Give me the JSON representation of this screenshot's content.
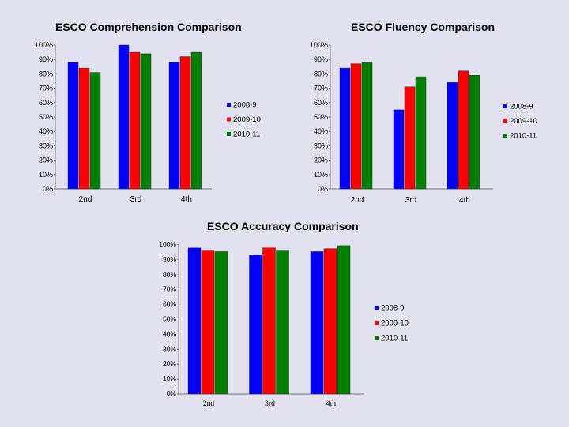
{
  "chart_data": [
    {
      "type": "bar",
      "title": "ESCO Comprehension Comparison",
      "categories": [
        "2nd",
        "3rd",
        "4th"
      ],
      "series": [
        {
          "name": "2008-9",
          "color": "#0000ff",
          "values": [
            88,
            100,
            88
          ]
        },
        {
          "name": "2009-10",
          "color": "#ff0000",
          "values": [
            84,
            95,
            92
          ]
        },
        {
          "name": "2010-11",
          "color": "#008000",
          "values": [
            81,
            94,
            95
          ]
        }
      ],
      "ylim": [
        0,
        100
      ],
      "yticks": [
        "0%",
        "10%",
        "20%",
        "30%",
        "40%",
        "50%",
        "60%",
        "70%",
        "80%",
        "90%",
        "100%"
      ],
      "xlabel": "",
      "ylabel": "",
      "legend": "right"
    },
    {
      "type": "bar",
      "title": "ESCO Fluency Comparison",
      "categories": [
        "2nd",
        "3rd",
        "4th"
      ],
      "series": [
        {
          "name": "2008-9",
          "color": "#0000ff",
          "values": [
            84,
            55,
            74
          ]
        },
        {
          "name": "2009-10",
          "color": "#ff0000",
          "values": [
            87,
            71,
            82
          ]
        },
        {
          "name": "2010-11",
          "color": "#008000",
          "values": [
            88,
            78,
            79
          ]
        }
      ],
      "ylim": [
        0,
        100
      ],
      "yticks": [
        "0%",
        "10%",
        "20%",
        "30%",
        "40%",
        "50%",
        "60%",
        "70%",
        "80%",
        "90%",
        "100%"
      ],
      "xlabel": "",
      "ylabel": "",
      "legend": "right"
    },
    {
      "type": "bar",
      "title": "ESCO Accuracy Comparison",
      "categories": [
        "2nd",
        "3rd",
        "4th"
      ],
      "series": [
        {
          "name": "2008-9",
          "color": "#0000ff",
          "values": [
            98,
            93,
            95
          ]
        },
        {
          "name": "2009-10",
          "color": "#ff0000",
          "values": [
            96,
            98,
            97
          ]
        },
        {
          "name": "2010-11",
          "color": "#008000",
          "values": [
            95,
            96,
            99
          ]
        }
      ],
      "ylim": [
        0,
        100
      ],
      "yticks": [
        "0%",
        "10%",
        "20%",
        "30%",
        "40%",
        "50%",
        "60%",
        "70%",
        "80%",
        "90%",
        "100%"
      ],
      "xlabel": "",
      "ylabel": "",
      "legend": "right"
    }
  ]
}
